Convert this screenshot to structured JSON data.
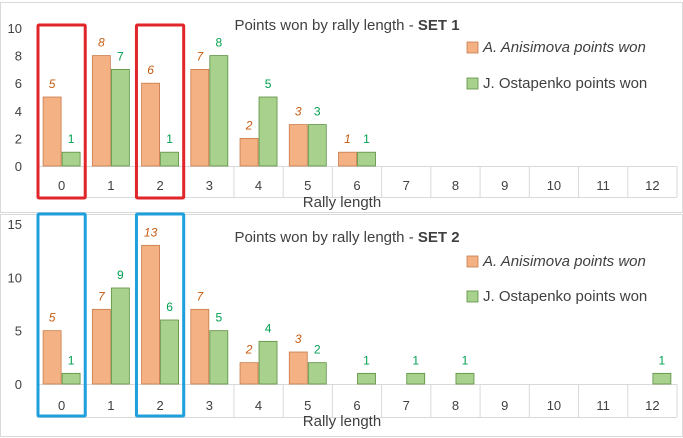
{
  "colors": {
    "anisimova_fill": "#f4b183",
    "anisimova_stroke": "#c97b4a",
    "ostapenko_fill": "#a9d18e",
    "ostapenko_stroke": "#5a8f3e",
    "anisimova_label": "#c55a11",
    "ostapenko_label": "#00a050",
    "highlight_set1": "#e0262a",
    "highlight_set2": "#1ea0dd",
    "gridline": "#d9d9d9",
    "axis": "#404040"
  },
  "chart_data": [
    {
      "type": "bar",
      "title_prefix": "Points won by rally length - ",
      "title_bold": "SET 1",
      "xlabel": "Rally length",
      "ylabel": "",
      "ylim": [
        0,
        10
      ],
      "yticks": [
        0,
        2,
        4,
        6,
        8,
        10
      ],
      "categories": [
        "0",
        "1",
        "2",
        "3",
        "4",
        "5",
        "6",
        "7",
        "8",
        "9",
        "10",
        "11",
        "12"
      ],
      "legend_position": "top-right",
      "series": [
        {
          "name": "A. Anisimova points won",
          "values": [
            5,
            8,
            6,
            7,
            2,
            3,
            1,
            0,
            0,
            0,
            0,
            0,
            0
          ]
        },
        {
          "name": "J. Ostapenko points won",
          "values": [
            1,
            7,
            1,
            8,
            5,
            3,
            1,
            0,
            0,
            0,
            0,
            0,
            0
          ]
        }
      ],
      "highlighted_categories": [
        "0",
        "2"
      ],
      "highlight_color": "#e0262a"
    },
    {
      "type": "bar",
      "title_prefix": "Points won by rally length - ",
      "title_bold": "SET 2",
      "xlabel": "Rally length",
      "ylabel": "",
      "ylim": [
        0,
        15
      ],
      "yticks": [
        0,
        5,
        10,
        15
      ],
      "categories": [
        "0",
        "1",
        "2",
        "3",
        "4",
        "5",
        "6",
        "7",
        "8",
        "9",
        "10",
        "11",
        "12"
      ],
      "legend_position": "top-right",
      "series": [
        {
          "name": "A. Anisimova points won",
          "values": [
            5,
            7,
            13,
            7,
            2,
            3,
            0,
            0,
            0,
            0,
            0,
            0,
            0
          ]
        },
        {
          "name": "J. Ostapenko points won",
          "values": [
            1,
            9,
            6,
            5,
            4,
            2,
            1,
            1,
            1,
            0,
            0,
            0,
            1
          ]
        }
      ],
      "highlighted_categories": [
        "0",
        "2"
      ],
      "highlight_color": "#1ea0dd"
    }
  ]
}
